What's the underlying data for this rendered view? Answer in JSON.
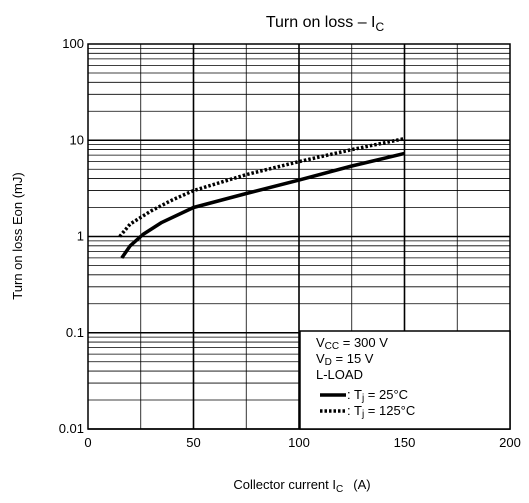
{
  "chart_data": {
    "type": "line",
    "title": {
      "main": "Turn on loss – I",
      "sub": "C"
    },
    "xlabel": {
      "main": "Collector current  I",
      "sub": "C",
      "unit": "(A)"
    },
    "ylabel": "Turn on loss   Eon    (mJ)",
    "x_scale": "linear",
    "y_scale": "log",
    "xlim": [
      0,
      200
    ],
    "ylim": [
      0.01,
      100
    ],
    "x_ticks": [
      "0",
      "50",
      "100",
      "150",
      "200"
    ],
    "y_ticks": [
      "0.01",
      "0.1",
      "1",
      "10",
      "100"
    ],
    "grid": true,
    "series": [
      {
        "name": "Tj = 25°C",
        "style": "solid",
        "color": "#000000",
        "x": [
          16,
          20,
          26,
          35,
          50,
          75,
          100,
          125,
          150
        ],
        "y": [
          0.6,
          0.8,
          1.05,
          1.4,
          2.0,
          2.8,
          3.85,
          5.4,
          7.3
        ]
      },
      {
        "name": "Tj = 125°C",
        "style": "dotted",
        "color": "#000000",
        "x": [
          15,
          20,
          30,
          40,
          50,
          75,
          100,
          125,
          150
        ],
        "y": [
          1.0,
          1.35,
          1.85,
          2.4,
          3.0,
          4.4,
          6.0,
          8.0,
          10.4
        ]
      }
    ],
    "legend": {
      "position": "bottom-right",
      "conditions": [
        {
          "main": "V",
          "sub": "CC",
          "rest": " = 300 V"
        },
        {
          "main": "V",
          "sub": "D",
          "rest": " = 15 V"
        },
        {
          "main": "L-LOAD",
          "sub": "",
          "rest": ""
        }
      ],
      "entries": [
        {
          "prefix": ": T",
          "sub": "j",
          "rest": " = 25°C",
          "style": "solid"
        },
        {
          "prefix": ": T",
          "sub": "j",
          "rest": " = 125°C",
          "style": "dotted"
        }
      ]
    }
  }
}
